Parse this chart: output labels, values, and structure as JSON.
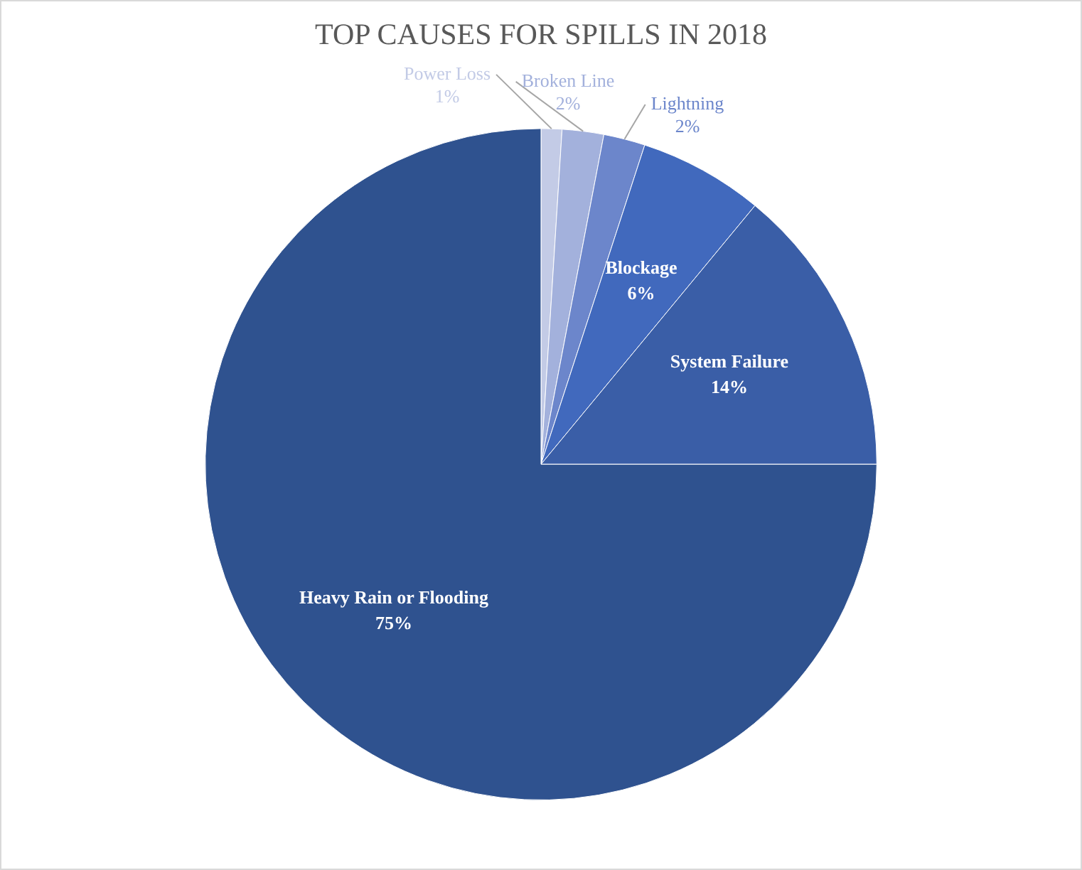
{
  "chart_data": {
    "type": "pie",
    "title": "TOP CAUSES FOR SPILLS IN 2018",
    "categories": [
      "Power Loss",
      "Broken Line",
      "Lightning",
      "Blockage",
      "System Failure",
      "Heavy Rain or Flooding"
    ],
    "values": [
      1,
      2,
      2,
      6,
      14,
      75
    ],
    "colors": [
      "#c3cbe6",
      "#a3b1dc",
      "#6c86cb",
      "#4169bd",
      "#3a5ea7",
      "#2f528f"
    ],
    "value_labels": [
      "1%",
      "2%",
      "2%",
      "6%",
      "14%",
      "75%"
    ],
    "legend": false
  }
}
